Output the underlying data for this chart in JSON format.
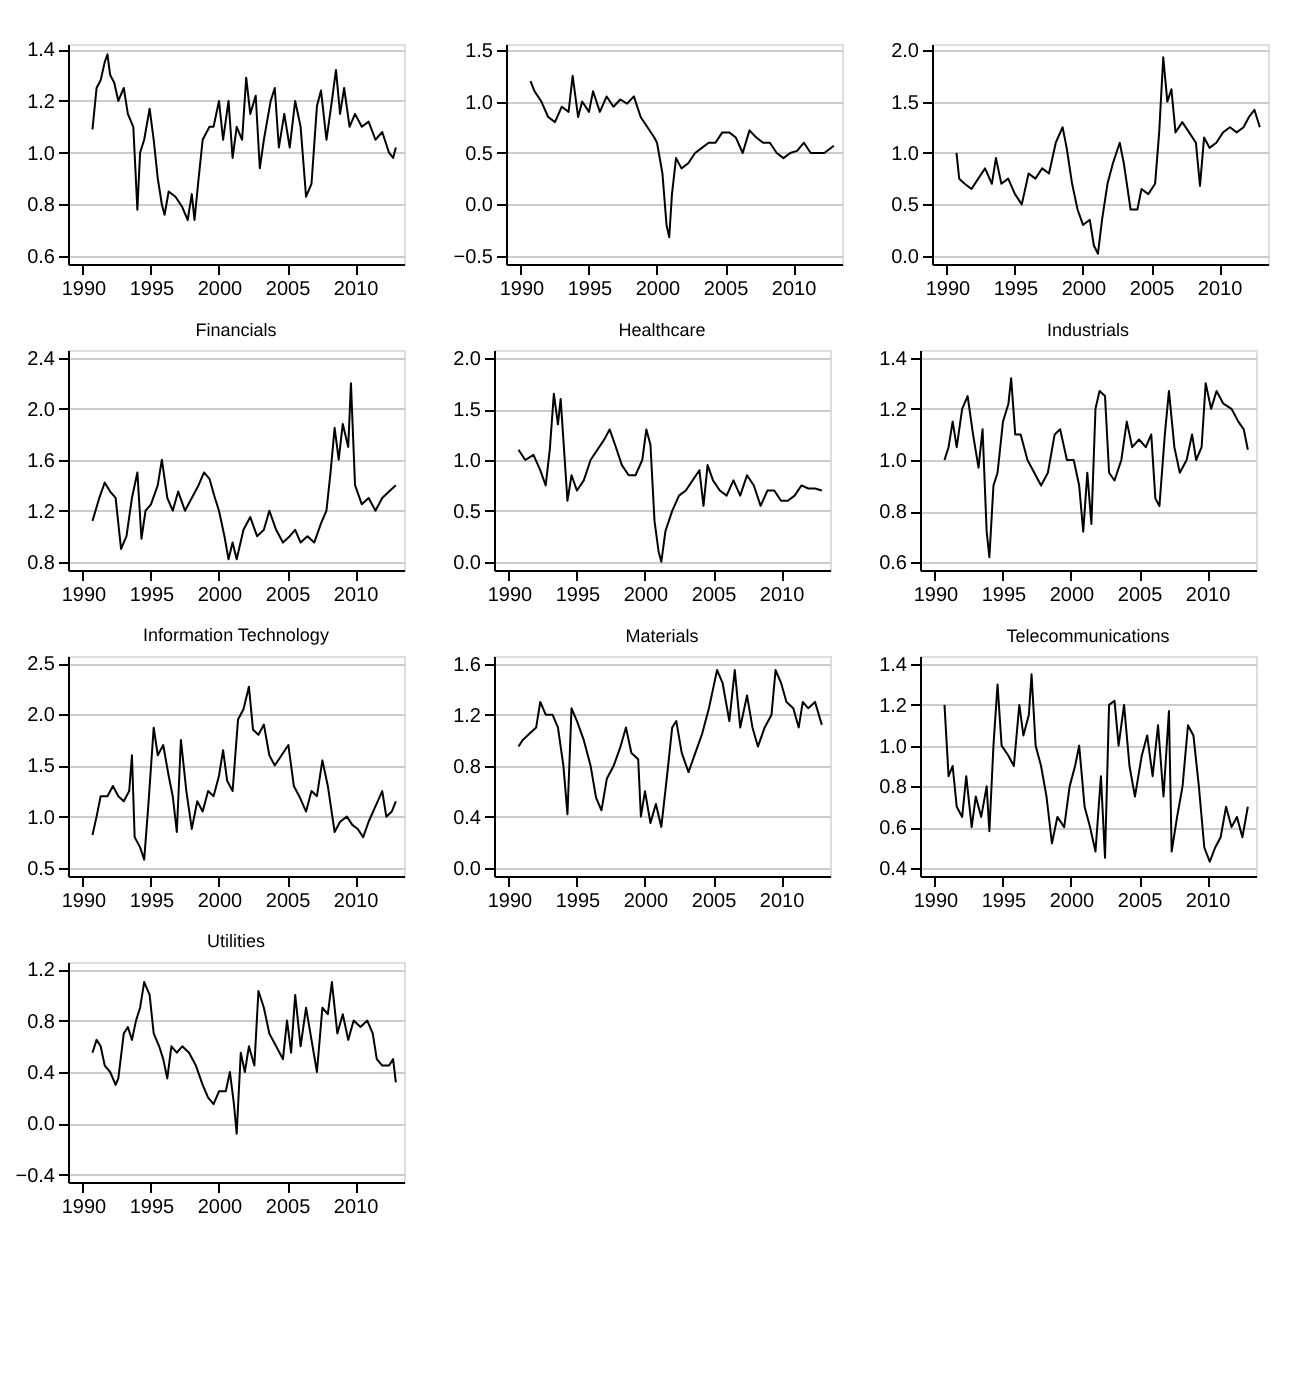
{
  "chart_data": [
    {
      "type": "line",
      "color": "#000000",
      "grid": "y",
      "xlim": [
        1988.9,
        2013.6
      ],
      "xticks": [
        1990,
        1995,
        2000,
        2005,
        2010
      ],
      "ylim": [
        0.57,
        1.42
      ],
      "yticks": [
        0.6,
        0.8,
        {
          "value": 1,
          "label": "1.0"
        },
        1.2,
        1.4
      ],
      "x": [
        1990.7,
        1991.0,
        1991.3,
        1991.6,
        1991.8,
        1992.0,
        1992.3,
        1992.6,
        1993.0,
        1993.3,
        1993.7,
        1994.0,
        1994.2,
        1994.5,
        1994.9,
        1995.2,
        1995.5,
        1995.8,
        1996.0,
        1996.3,
        1996.8,
        1997.3,
        1997.7,
        1998.0,
        1998.2,
        1998.5,
        1998.8,
        1999.3,
        1999.6,
        2000.0,
        2000.3,
        2000.7,
        2001.0,
        2001.3,
        2001.7,
        2002.0,
        2002.3,
        2002.7,
        2003.0,
        2003.3,
        2003.8,
        2004.1,
        2004.4,
        2004.8,
        2005.2,
        2005.6,
        2006.0,
        2006.4,
        2006.8,
        2007.2,
        2007.5,
        2007.9,
        2008.3,
        2008.6,
        2008.9,
        2009.2,
        2009.6,
        2010.0,
        2010.5,
        2011.0,
        2011.5,
        2012.0,
        2012.5,
        2012.8,
        2013.0
      ],
      "values": [
        1.09,
        1.25,
        1.28,
        1.35,
        1.38,
        1.3,
        1.27,
        1.2,
        1.25,
        1.15,
        1.1,
        0.78,
        1.0,
        1.05,
        1.17,
        1.05,
        0.9,
        0.8,
        0.76,
        0.85,
        0.83,
        0.79,
        0.74,
        0.84,
        0.74,
        0.9,
        1.05,
        1.1,
        1.1,
        1.2,
        1.05,
        1.2,
        0.98,
        1.1,
        1.05,
        1.29,
        1.15,
        1.22,
        0.94,
        1.05,
        1.2,
        1.25,
        1.02,
        1.15,
        1.02,
        1.2,
        1.1,
        0.83,
        0.88,
        1.18,
        1.24,
        1.05,
        1.2,
        1.32,
        1.15,
        1.25,
        1.1,
        1.15,
        1.1,
        1.12,
        1.05,
        1.08,
        1.0,
        0.98,
        1.02
      ]
    },
    {
      "type": "line",
      "color": "#000000",
      "grid": "y",
      "xlim": [
        1988.9,
        2013.6
      ],
      "xticks": [
        1990,
        1995,
        2000,
        2005,
        2010
      ],
      "ylim": [
        -0.58,
        1.56
      ],
      "yticks": [
        -0.5,
        {
          "value": 0,
          "label": "0.0"
        },
        0.5,
        {
          "value": 1,
          "label": "1.0"
        },
        1.5
      ],
      "x": [
        1990.7,
        1991.0,
        1991.5,
        1992.0,
        1992.5,
        1993.0,
        1993.5,
        1993.8,
        1994.2,
        1994.5,
        1995.0,
        1995.3,
        1995.8,
        1996.3,
        1996.8,
        1997.3,
        1997.8,
        1998.3,
        1998.8,
        1999.3,
        1999.8,
        2000.0,
        2000.4,
        2000.7,
        2000.9,
        2001.1,
        2001.4,
        2001.8,
        2002.3,
        2002.8,
        2003.3,
        2003.8,
        2004.3,
        2004.8,
        2005.3,
        2005.8,
        2006.3,
        2006.8,
        2007.3,
        2007.8,
        2008.3,
        2008.8,
        2009.3,
        2009.8,
        2010.3,
        2010.8,
        2011.3,
        2011.8,
        2012.3,
        2013.0
      ],
      "values": [
        1.2,
        1.1,
        1.0,
        0.85,
        0.8,
        0.95,
        0.9,
        1.25,
        0.85,
        1.0,
        0.9,
        1.1,
        0.9,
        1.05,
        0.95,
        1.02,
        0.98,
        1.05,
        0.85,
        0.75,
        0.65,
        0.6,
        0.3,
        -0.2,
        -0.32,
        0.1,
        0.45,
        0.35,
        0.4,
        0.5,
        0.55,
        0.6,
        0.6,
        0.7,
        0.7,
        0.65,
        0.5,
        0.72,
        0.65,
        0.6,
        0.6,
        0.5,
        0.45,
        0.5,
        0.52,
        0.6,
        0.5,
        0.5,
        0.5,
        0.57
      ]
    },
    {
      "type": "line",
      "color": "#000000",
      "grid": "y",
      "xlim": [
        1988.9,
        2013.6
      ],
      "xticks": [
        1990,
        1995,
        2000,
        2005,
        2010
      ],
      "ylim": [
        -0.08,
        2.06
      ],
      "yticks": [
        {
          "value": 0,
          "label": "0.0"
        },
        0.5,
        {
          "value": 1,
          "label": "1.0"
        },
        1.5,
        {
          "value": 2,
          "label": "2.0"
        }
      ],
      "x": [
        1990.7,
        1990.9,
        1991.3,
        1991.8,
        1992.3,
        1992.8,
        1993.3,
        1993.6,
        1994.0,
        1994.5,
        1995.0,
        1995.5,
        1996.0,
        1996.5,
        1997.0,
        1997.5,
        1998.0,
        1998.5,
        1998.8,
        1999.2,
        1999.6,
        2000.0,
        2000.5,
        2000.8,
        2001.1,
        2001.4,
        2001.8,
        2002.2,
        2002.7,
        2003.0,
        2003.5,
        2004.0,
        2004.3,
        2004.8,
        2005.3,
        2005.6,
        2005.9,
        2006.2,
        2006.5,
        2006.8,
        2007.3,
        2007.8,
        2008.3,
        2008.6,
        2008.9,
        2009.3,
        2009.8,
        2010.3,
        2010.8,
        2011.3,
        2011.8,
        2012.2,
        2012.6,
        2013.0
      ],
      "values": [
        1.0,
        0.75,
        0.7,
        0.65,
        0.75,
        0.85,
        0.7,
        0.95,
        0.7,
        0.75,
        0.6,
        0.5,
        0.8,
        0.75,
        0.85,
        0.8,
        1.1,
        1.25,
        1.05,
        0.7,
        0.45,
        0.3,
        0.35,
        0.1,
        0.02,
        0.35,
        0.7,
        0.9,
        1.1,
        0.9,
        0.45,
        0.45,
        0.65,
        0.6,
        0.7,
        1.2,
        1.93,
        1.5,
        1.62,
        1.2,
        1.3,
        1.2,
        1.1,
        0.68,
        1.15,
        1.05,
        1.1,
        1.2,
        1.25,
        1.2,
        1.25,
        1.35,
        1.42,
        1.25
      ]
    },
    {
      "type": "line",
      "title": "Financials",
      "color": "#000000",
      "grid": "y",
      "xlim": [
        1988.9,
        2013.6
      ],
      "xticks": [
        1990,
        1995,
        2000,
        2005,
        2010
      ],
      "ylim": [
        0.735,
        2.46
      ],
      "yticks": [
        0.8,
        1.2,
        1.6,
        {
          "value": 2,
          "label": "2.0"
        },
        2.4
      ],
      "x": [
        1990.7,
        1991.2,
        1991.6,
        1992.0,
        1992.4,
        1992.8,
        1993.2,
        1993.6,
        1994.0,
        1994.3,
        1994.6,
        1995.0,
        1995.5,
        1995.8,
        1996.2,
        1996.6,
        1997.0,
        1997.5,
        1998.0,
        1998.5,
        1998.9,
        1999.3,
        1999.7,
        2000.0,
        2000.4,
        2000.7,
        2001.0,
        2001.3,
        2001.8,
        2002.3,
        2002.8,
        2003.3,
        2003.7,
        2004.2,
        2004.7,
        2005.2,
        2005.6,
        2006.0,
        2006.5,
        2007.0,
        2007.5,
        2007.9,
        2008.2,
        2008.5,
        2008.8,
        2009.1,
        2009.5,
        2009.7,
        2010.0,
        2010.5,
        2011.0,
        2011.5,
        2012.0,
        2012.5,
        2013.0
      ],
      "values": [
        1.12,
        1.3,
        1.42,
        1.35,
        1.3,
        0.9,
        1.0,
        1.3,
        1.5,
        0.98,
        1.2,
        1.25,
        1.4,
        1.6,
        1.3,
        1.2,
        1.35,
        1.2,
        1.3,
        1.4,
        1.5,
        1.45,
        1.3,
        1.2,
        1.0,
        0.82,
        0.95,
        0.82,
        1.05,
        1.15,
        1.0,
        1.05,
        1.2,
        1.05,
        0.95,
        1.0,
        1.05,
        0.95,
        1.0,
        0.95,
        1.1,
        1.2,
        1.5,
        1.85,
        1.6,
        1.88,
        1.7,
        2.2,
        1.4,
        1.25,
        1.3,
        1.2,
        1.3,
        1.35,
        1.4
      ]
    },
    {
      "type": "line",
      "title": "Healthcare",
      "color": "#000000",
      "grid": "y",
      "xlim": [
        1988.9,
        2013.6
      ],
      "xticks": [
        1990,
        1995,
        2000,
        2005,
        2010
      ],
      "ylim": [
        -0.08,
        2.08
      ],
      "yticks": [
        {
          "value": 0,
          "label": "0.0"
        },
        0.5,
        {
          "value": 1,
          "label": "1.0"
        },
        1.5,
        {
          "value": 2,
          "label": "2.0"
        }
      ],
      "x": [
        1990.7,
        1991.2,
        1991.8,
        1992.3,
        1992.7,
        1993.0,
        1993.3,
        1993.6,
        1993.8,
        1994.0,
        1994.3,
        1994.6,
        1995.0,
        1995.5,
        1996.0,
        1996.5,
        1997.0,
        1997.4,
        1997.8,
        1998.3,
        1998.8,
        1999.3,
        1999.8,
        2000.1,
        2000.4,
        2000.7,
        2001.0,
        2001.2,
        2001.5,
        2002.0,
        2002.5,
        2003.0,
        2003.5,
        2004.0,
        2004.3,
        2004.6,
        2005.0,
        2005.5,
        2006.0,
        2006.5,
        2007.0,
        2007.5,
        2008.0,
        2008.5,
        2009.0,
        2009.5,
        2010.0,
        2010.5,
        2011.0,
        2011.5,
        2012.0,
        2012.5,
        2013.0
      ],
      "values": [
        1.1,
        1.0,
        1.05,
        0.9,
        0.75,
        1.1,
        1.65,
        1.35,
        1.6,
        1.2,
        0.6,
        0.85,
        0.7,
        0.8,
        1.0,
        1.1,
        1.2,
        1.3,
        1.15,
        0.95,
        0.85,
        0.85,
        1.0,
        1.3,
        1.15,
        0.4,
        0.1,
        0.0,
        0.3,
        0.5,
        0.65,
        0.7,
        0.8,
        0.9,
        0.55,
        0.95,
        0.8,
        0.7,
        0.65,
        0.8,
        0.65,
        0.85,
        0.75,
        0.55,
        0.7,
        0.7,
        0.6,
        0.6,
        0.65,
        0.75,
        0.72,
        0.72,
        0.7
      ]
    },
    {
      "type": "line",
      "title": "Industrials",
      "color": "#000000",
      "grid": "y",
      "xlim": [
        1988.9,
        2013.6
      ],
      "xticks": [
        1990,
        1995,
        2000,
        2005,
        2010
      ],
      "ylim": [
        0.57,
        1.43
      ],
      "yticks": [
        0.6,
        0.8,
        {
          "value": 1,
          "label": "1.0"
        },
        1.2,
        1.4
      ],
      "x": [
        1990.7,
        1991.0,
        1991.3,
        1991.6,
        1992.0,
        1992.4,
        1992.8,
        1993.2,
        1993.5,
        1993.8,
        1994.0,
        1994.3,
        1994.6,
        1995.0,
        1995.4,
        1995.6,
        1995.9,
        1996.3,
        1996.8,
        1997.3,
        1997.8,
        1998.3,
        1998.8,
        1999.2,
        1999.7,
        2000.2,
        2000.6,
        2000.9,
        2001.2,
        2001.5,
        2001.8,
        2002.1,
        2002.5,
        2002.8,
        2003.2,
        2003.7,
        2004.1,
        2004.5,
        2005.0,
        2005.5,
        2005.9,
        2006.2,
        2006.5,
        2006.9,
        2007.2,
        2007.6,
        2008.0,
        2008.5,
        2008.9,
        2009.2,
        2009.6,
        2009.9,
        2010.3,
        2010.7,
        2011.2,
        2011.8,
        2012.3,
        2012.7,
        2013.0
      ],
      "values": [
        1.0,
        1.05,
        1.15,
        1.05,
        1.2,
        1.25,
        1.1,
        0.97,
        1.12,
        0.72,
        0.62,
        0.9,
        0.95,
        1.15,
        1.22,
        1.32,
        1.1,
        1.1,
        1.0,
        0.95,
        0.9,
        0.95,
        1.1,
        1.12,
        1.0,
        1.0,
        0.9,
        0.72,
        0.95,
        0.75,
        1.2,
        1.27,
        1.25,
        0.95,
        0.92,
        1.0,
        1.15,
        1.05,
        1.08,
        1.05,
        1.1,
        0.85,
        0.82,
        1.1,
        1.27,
        1.05,
        0.95,
        1.0,
        1.1,
        1.0,
        1.05,
        1.3,
        1.2,
        1.27,
        1.22,
        1.2,
        1.15,
        1.12,
        1.04
      ]
    },
    {
      "type": "line",
      "title": "Information Technology",
      "color": "#000000",
      "grid": "y",
      "xlim": [
        1988.9,
        2013.6
      ],
      "xticks": [
        1990,
        1995,
        2000,
        2005,
        2010
      ],
      "ylim": [
        0.42,
        2.57
      ],
      "yticks": [
        0.5,
        {
          "value": 1,
          "label": "1.0"
        },
        1.5,
        {
          "value": 2,
          "label": "2.0"
        },
        2.5
      ],
      "x": [
        1990.7,
        1991.0,
        1991.3,
        1991.8,
        1992.2,
        1992.6,
        1993.0,
        1993.4,
        1993.6,
        1993.8,
        1994.2,
        1994.5,
        1994.8,
        1995.2,
        1995.5,
        1995.9,
        1996.3,
        1996.6,
        1996.9,
        1997.2,
        1997.6,
        1998.0,
        1998.4,
        1998.8,
        1999.2,
        1999.6,
        2000.0,
        2000.3,
        2000.6,
        2001.0,
        2001.4,
        2001.8,
        2002.2,
        2002.5,
        2002.9,
        2003.3,
        2003.7,
        2004.1,
        2004.6,
        2005.1,
        2005.5,
        2005.9,
        2006.4,
        2006.8,
        2007.2,
        2007.6,
        2008.0,
        2008.5,
        2008.9,
        2009.4,
        2009.8,
        2010.2,
        2010.6,
        2011.0,
        2011.5,
        2012.0,
        2012.3,
        2012.7,
        2013.0
      ],
      "values": [
        0.82,
        1.0,
        1.2,
        1.2,
        1.3,
        1.2,
        1.15,
        1.25,
        1.6,
        0.8,
        0.7,
        0.58,
        1.1,
        1.87,
        1.6,
        1.7,
        1.4,
        1.2,
        0.85,
        1.75,
        1.25,
        0.88,
        1.15,
        1.05,
        1.25,
        1.2,
        1.4,
        1.65,
        1.35,
        1.25,
        1.95,
        2.05,
        2.27,
        1.85,
        1.8,
        1.9,
        1.6,
        1.5,
        1.6,
        1.7,
        1.3,
        1.2,
        1.05,
        1.25,
        1.2,
        1.55,
        1.3,
        0.85,
        0.95,
        1.0,
        0.92,
        0.88,
        0.8,
        0.95,
        1.1,
        1.25,
        1.0,
        1.05,
        1.15
      ]
    },
    {
      "type": "line",
      "title": "Materials",
      "color": "#000000",
      "grid": "y",
      "xlim": [
        1988.9,
        2013.6
      ],
      "xticks": [
        1990,
        1995,
        2000,
        2005,
        2010
      ],
      "ylim": [
        -0.065,
        1.66
      ],
      "yticks": [
        {
          "value": 0,
          "label": "0.0"
        },
        0.4,
        0.8,
        1.2,
        1.6
      ],
      "x": [
        1990.7,
        1991.0,
        1991.5,
        1992.0,
        1992.3,
        1992.7,
        1993.2,
        1993.6,
        1994.0,
        1994.3,
        1994.6,
        1995.0,
        1995.5,
        1996.0,
        1996.4,
        1996.8,
        1997.2,
        1997.7,
        1998.2,
        1998.6,
        1999.0,
        1999.5,
        1999.7,
        2000.0,
        2000.4,
        2000.8,
        2001.2,
        2001.6,
        2002.0,
        2002.3,
        2002.7,
        2003.2,
        2003.7,
        2004.2,
        2004.7,
        2005.0,
        2005.3,
        2005.7,
        2006.2,
        2006.6,
        2007.0,
        2007.5,
        2007.9,
        2008.3,
        2008.8,
        2009.3,
        2009.6,
        2010.0,
        2010.4,
        2010.9,
        2011.3,
        2011.6,
        2012.0,
        2012.5,
        2013.0
      ],
      "values": [
        0.95,
        1.0,
        1.05,
        1.1,
        1.3,
        1.2,
        1.2,
        1.1,
        0.8,
        0.42,
        1.25,
        1.15,
        1.0,
        0.8,
        0.55,
        0.45,
        0.7,
        0.8,
        0.95,
        1.1,
        0.9,
        0.85,
        0.4,
        0.6,
        0.35,
        0.5,
        0.32,
        0.7,
        1.1,
        1.15,
        0.9,
        0.75,
        0.9,
        1.05,
        1.25,
        1.4,
        1.55,
        1.45,
        1.15,
        1.55,
        1.1,
        1.35,
        1.1,
        0.95,
        1.1,
        1.2,
        1.55,
        1.45,
        1.3,
        1.25,
        1.1,
        1.3,
        1.25,
        1.3,
        1.12
      ]
    },
    {
      "type": "line",
      "title": "Telecommunications",
      "color": "#000000",
      "grid": "y",
      "xlim": [
        1988.9,
        2013.6
      ],
      "xticks": [
        1990,
        1995,
        2000,
        2005,
        2010
      ],
      "ylim": [
        0.36,
        1.44
      ],
      "yticks": [
        0.4,
        0.6,
        0.8,
        {
          "value": 1,
          "label": "1.0"
        },
        1.2,
        1.4
      ],
      "x": [
        1990.7,
        1991.0,
        1991.3,
        1991.6,
        1992.0,
        1992.3,
        1992.7,
        1993.0,
        1993.4,
        1993.8,
        1994.0,
        1994.3,
        1994.6,
        1994.9,
        1995.4,
        1995.8,
        1996.2,
        1996.5,
        1996.9,
        1997.1,
        1997.4,
        1997.8,
        1998.2,
        1998.6,
        1999.0,
        1999.5,
        1999.9,
        2000.3,
        2000.6,
        2001.0,
        2001.4,
        2001.8,
        2002.2,
        2002.5,
        2002.8,
        2003.2,
        2003.5,
        2003.9,
        2004.3,
        2004.7,
        2005.2,
        2005.6,
        2006.0,
        2006.4,
        2006.8,
        2007.2,
        2007.4,
        2007.8,
        2008.2,
        2008.6,
        2009.0,
        2009.4,
        2009.8,
        2010.2,
        2010.6,
        2011.0,
        2011.4,
        2011.8,
        2012.2,
        2012.6,
        2013.0
      ],
      "values": [
        1.2,
        0.85,
        0.9,
        0.7,
        0.65,
        0.85,
        0.6,
        0.75,
        0.65,
        0.8,
        0.58,
        1.0,
        1.3,
        1.0,
        0.95,
        0.9,
        1.2,
        1.05,
        1.15,
        1.35,
        1.0,
        0.9,
        0.75,
        0.52,
        0.65,
        0.6,
        0.8,
        0.9,
        1.0,
        0.7,
        0.6,
        0.48,
        0.85,
        0.45,
        1.2,
        1.22,
        1.0,
        1.2,
        0.9,
        0.75,
        0.95,
        1.05,
        0.85,
        1.1,
        0.75,
        1.17,
        0.48,
        0.65,
        0.8,
        1.1,
        1.05,
        0.8,
        0.5,
        0.43,
        0.5,
        0.55,
        0.7,
        0.6,
        0.65,
        0.55,
        0.7
      ]
    },
    {
      "type": "line",
      "title": "Utilities",
      "color": "#000000",
      "grid": "y",
      "xlim": [
        1988.9,
        2013.6
      ],
      "xticks": [
        1990,
        1995,
        2000,
        2005,
        2010
      ],
      "ylim": [
        -0.456,
        1.256
      ],
      "yticks": [
        -0.4,
        {
          "value": 0,
          "label": "0.0"
        },
        0.4,
        0.8,
        1.2
      ],
      "x": [
        1990.7,
        1991.0,
        1991.3,
        1991.6,
        1992.0,
        1992.4,
        1992.6,
        1993.0,
        1993.3,
        1993.6,
        1993.9,
        1994.2,
        1994.5,
        1994.9,
        1995.2,
        1995.6,
        1995.9,
        1996.2,
        1996.5,
        1996.9,
        1997.3,
        1997.8,
        1998.3,
        1998.8,
        1999.2,
        1999.6,
        2000.0,
        2000.5,
        2000.8,
        2001.1,
        2001.3,
        2001.6,
        2001.9,
        2002.2,
        2002.6,
        2002.9,
        2003.3,
        2003.7,
        2004.2,
        2004.7,
        2005.0,
        2005.3,
        2005.6,
        2006.0,
        2006.4,
        2006.8,
        2007.2,
        2007.6,
        2008.0,
        2008.3,
        2008.7,
        2009.1,
        2009.5,
        2009.9,
        2010.4,
        2010.9,
        2011.3,
        2011.6,
        2012.0,
        2012.5,
        2012.8,
        2013.0
      ],
      "values": [
        0.55,
        0.65,
        0.6,
        0.45,
        0.4,
        0.3,
        0.35,
        0.7,
        0.75,
        0.65,
        0.8,
        0.9,
        1.1,
        1.0,
        0.7,
        0.6,
        0.5,
        0.35,
        0.6,
        0.55,
        0.6,
        0.55,
        0.45,
        0.3,
        0.2,
        0.15,
        0.25,
        0.25,
        0.4,
        0.15,
        -0.08,
        0.55,
        0.4,
        0.6,
        0.45,
        1.03,
        0.9,
        0.7,
        0.6,
        0.5,
        0.8,
        0.55,
        1.0,
        0.6,
        0.9,
        0.65,
        0.4,
        0.9,
        0.85,
        1.1,
        0.7,
        0.85,
        0.65,
        0.8,
        0.75,
        0.8,
        0.7,
        0.5,
        0.45,
        0.45,
        0.5,
        0.32
      ]
    }
  ]
}
